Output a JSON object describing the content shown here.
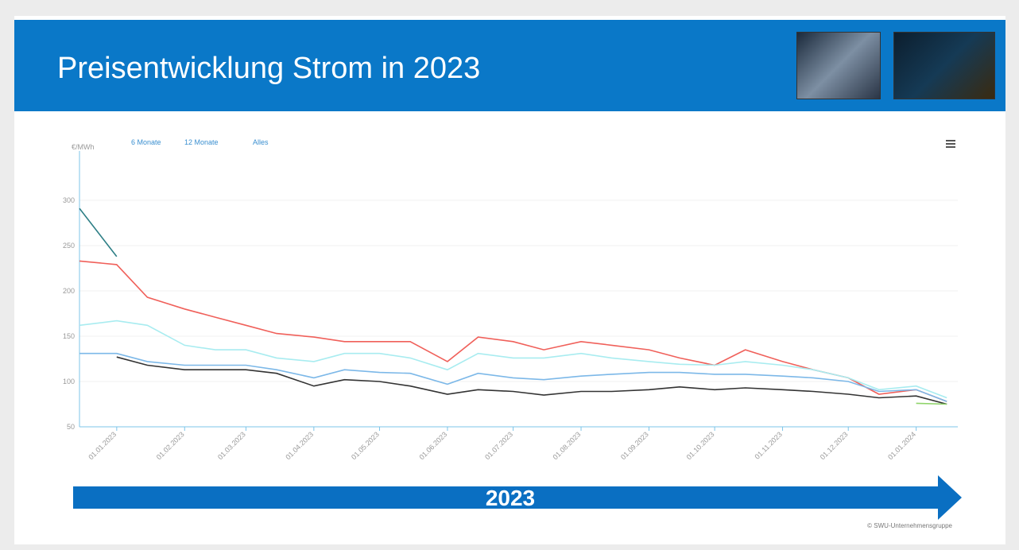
{
  "title": "Preisentwicklung Strom in 2023",
  "buttons": [
    "6 Monate",
    "12 Monate",
    "Alles"
  ],
  "banner": "2023",
  "footer": "© SWU-Unternehmensgruppe",
  "chart_data": {
    "type": "line",
    "y_label": "€/MWh",
    "ylim": [
      50,
      350
    ],
    "yticks": [
      50,
      100,
      150,
      200,
      250,
      300
    ],
    "xlim": [
      "15.12.2022",
      "20.01.2024"
    ],
    "xticks": [
      "01.01.2023",
      "01.02.2023",
      "01.03.2023",
      "01.04.2023",
      "01.05.2023",
      "01.06.2023",
      "01.07.2023",
      "01.08.2023",
      "01.09.2023",
      "01.10.2023",
      "01.11.2023",
      "01.12.2023",
      "01.01.2024"
    ],
    "x": [
      "15.12.2022",
      "01.01.2023",
      "15.01.2023",
      "01.02.2023",
      "15.02.2023",
      "01.03.2023",
      "15.03.2023",
      "01.04.2023",
      "15.04.2023",
      "01.05.2023",
      "15.05.2023",
      "01.06.2023",
      "15.06.2023",
      "01.07.2023",
      "15.07.2023",
      "01.08.2023",
      "15.08.2023",
      "01.09.2023",
      "15.09.2023",
      "01.10.2023",
      "15.10.2023",
      "01.11.2023",
      "15.11.2023",
      "01.12.2023",
      "15.12.2023",
      "01.01.2024",
      "15.01.2024"
    ],
    "series": [
      {
        "color": "#f0605a",
        "values": [
          233,
          229,
          193,
          180,
          171,
          162,
          153,
          149,
          144,
          144,
          144,
          122,
          149,
          144,
          135,
          144,
          140,
          135,
          126,
          118,
          135,
          122,
          113,
          104,
          86,
          91,
          78
        ]
      },
      {
        "color": "#a8ecf0",
        "values": [
          162,
          167,
          162,
          140,
          135,
          135,
          126,
          122,
          131,
          131,
          126,
          113,
          131,
          126,
          126,
          131,
          126,
          122,
          119,
          118,
          122,
          118,
          113,
          104,
          91,
          95,
          82
        ]
      },
      {
        "color": "#7cb8e8",
        "values": [
          131,
          131,
          122,
          118,
          118,
          118,
          113,
          104,
          113,
          110,
          109,
          97,
          109,
          104,
          102,
          106,
          108,
          110,
          110,
          108,
          108,
          106,
          104,
          100,
          89,
          91,
          78
        ]
      },
      {
        "color": "#333333",
        "values": [
          null,
          127,
          118,
          113,
          113,
          113,
          109,
          95,
          102,
          100,
          95,
          86,
          91,
          89,
          85,
          89,
          89,
          91,
          94,
          91,
          93,
          91,
          89,
          86,
          82,
          84,
          75
        ]
      },
      {
        "color": "#2e7f86",
        "values": [
          291,
          238,
          null,
          null,
          null,
          null,
          null,
          null,
          null,
          null,
          null,
          null,
          null,
          null,
          null,
          null,
          null,
          null,
          null,
          null,
          null,
          null,
          null,
          null,
          null,
          null,
          null
        ]
      },
      {
        "color": "#8fd46a",
        "values": [
          null,
          null,
          null,
          null,
          null,
          null,
          null,
          null,
          null,
          null,
          null,
          null,
          null,
          null,
          null,
          null,
          null,
          null,
          null,
          null,
          null,
          null,
          null,
          null,
          null,
          76,
          75
        ]
      }
    ]
  }
}
